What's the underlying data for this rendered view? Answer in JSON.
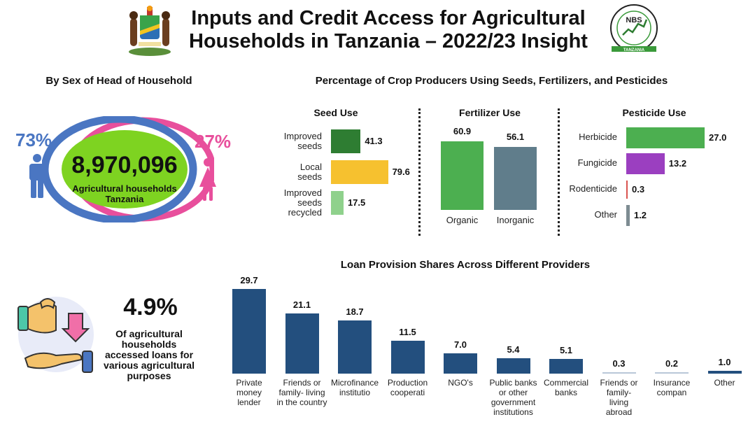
{
  "header": {
    "title_line1": "Inputs and Credit Access for Agricultural",
    "title_line2": "Households in Tanzania – 2022/23 Insight",
    "nbs_logo_text": "NBS",
    "nbs_logo_caption": "TANZANIA"
  },
  "household": {
    "section_title": "By Sex of Head of Household",
    "male_pct": "73%",
    "female_pct": "27%",
    "total": "8,970,096",
    "label_line1": "Agricultural households",
    "label_line2": "Tanzania",
    "colors": {
      "male": "#4a76c2",
      "female": "#e84f9c",
      "center": "#7ed321"
    }
  },
  "crop_inputs": {
    "section_title": "Percentage of Crop Producers Using Seeds, Fertilizers, and Pesticides"
  },
  "loans_summary": {
    "pct": "4.9%",
    "text_line1": "Of agricultural",
    "text_line2": "households",
    "text_line3": "accessed loans for",
    "text_line4": "various agricultural",
    "text_line5": "purposes"
  },
  "chart_data": [
    {
      "type": "bar",
      "orientation": "horizontal",
      "title": "Seed Use",
      "categories": [
        [
          "Improved",
          "seeds"
        ],
        [
          "Local",
          "seeds"
        ],
        [
          "Improved",
          "seeds",
          "recycled"
        ]
      ],
      "values": [
        41.3,
        79.6,
        17.5
      ],
      "value_labels": [
        "41.3",
        "79.6",
        "17.5"
      ],
      "colors": [
        "#2e7d32",
        "#f6c12f",
        "#8fd18c"
      ],
      "xlim": [
        0,
        80
      ]
    },
    {
      "type": "bar",
      "orientation": "vertical",
      "title": "Fertilizer Use",
      "categories": [
        "Organic",
        "Inorganic"
      ],
      "values": [
        60.9,
        56.1
      ],
      "value_labels": [
        "60.9",
        "56.1"
      ],
      "colors": [
        "#4caf50",
        "#607d8b"
      ],
      "ylim": [
        0,
        61
      ]
    },
    {
      "type": "bar",
      "orientation": "horizontal",
      "title": "Pesticide Use",
      "categories": [
        "Herbicide",
        "Fungicide",
        "Rodenticide",
        "Other"
      ],
      "values": [
        27.0,
        13.2,
        0.3,
        1.2
      ],
      "value_labels": [
        "27.0",
        "13.2",
        "0.3",
        "1.2"
      ],
      "colors": [
        "#4caf50",
        "#9b3fc0",
        "#d9534f",
        "#7d8c92"
      ],
      "xlim": [
        0,
        27
      ]
    },
    {
      "type": "bar",
      "orientation": "vertical",
      "title": "Loan Provision Shares Across Different Providers",
      "categories": [
        [
          "Private",
          "money",
          "lender"
        ],
        [
          "Friends or",
          "family- living",
          "in the country"
        ],
        [
          "Microfinance",
          "institutio"
        ],
        [
          "Production",
          "cooperati"
        ],
        [
          "NGO's"
        ],
        [
          "Public banks",
          "or other",
          "government",
          "institutions"
        ],
        [
          "Commercial",
          "banks"
        ],
        [
          "Friends or",
          "family-",
          "living",
          "abroad"
        ],
        [
          "Insurance",
          "compan"
        ],
        [
          "Other"
        ]
      ],
      "values": [
        29.7,
        21.1,
        18.7,
        11.5,
        7.0,
        5.4,
        5.1,
        0.3,
        0.2,
        1.0
      ],
      "value_labels": [
        "29.7",
        "21.1",
        "18.7",
        "11.5",
        "7.0",
        "5.4",
        "5.1",
        "0.3",
        "0.2",
        "1.0"
      ],
      "color": "#234f7e",
      "ylim": [
        0,
        29.7
      ]
    }
  ]
}
